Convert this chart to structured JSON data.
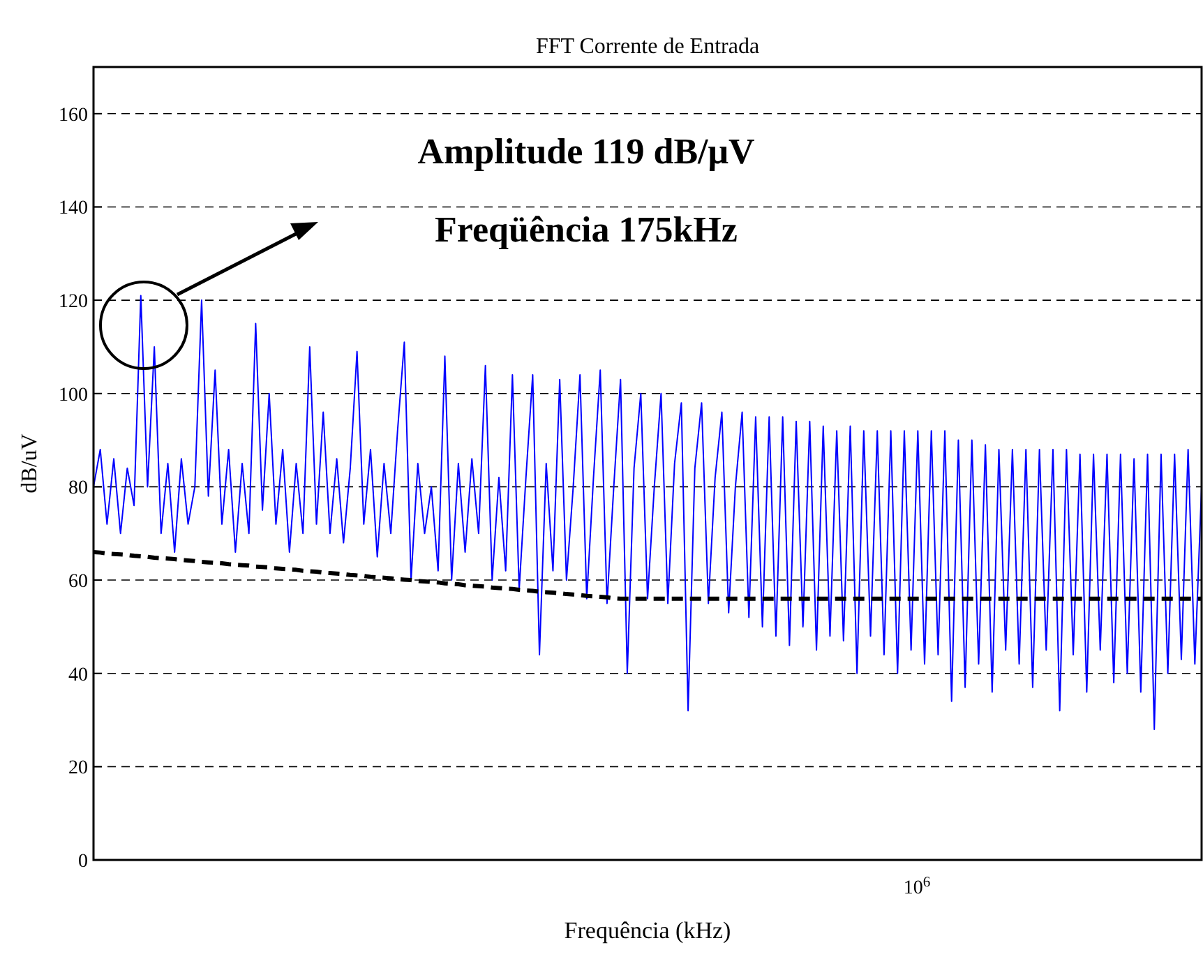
{
  "chart_data": {
    "type": "line",
    "title": "FFT Corrente de Entrada",
    "xlabel": "Frequência (kHz)",
    "ylabel": "dB/uV",
    "annotations": [
      "Amplitude 119 dB/μV",
      "Freqüência 175kHz",
      "10$^{6}$"
    ],
    "grid": "y",
    "ylim": [
      0,
      170
    ],
    "yticks": [
      0,
      20,
      40,
      60,
      80,
      100,
      120,
      140,
      160
    ],
    "categories": [
      null,
      null,
      null,
      null,
      null,
      null,
      null,
      null,
      null,
      null,
      null,
      null,
      null,
      null,
      null,
      null,
      null,
      null,
      null,
      null,
      null,
      null,
      null,
      null,
      null,
      null,
      null,
      null,
      null,
      null,
      null,
      null,
      null,
      null,
      null,
      null,
      null,
      null,
      null,
      null,
      null,
      null,
      null,
      null,
      null,
      null,
      null,
      null,
      null,
      null,
      null,
      null,
      null,
      null,
      null,
      null,
      null,
      null,
      null,
      null,
      null,
      null,
      null,
      null,
      null,
      null,
      null,
      null,
      null,
      null,
      null,
      null,
      null,
      null,
      null,
      null,
      null,
      null,
      null,
      null,
      null,
      null,
      null,
      null,
      null,
      null,
      null,
      null,
      null,
      null,
      null,
      null,
      null,
      null,
      null,
      null,
      null,
      null,
      null,
      null,
      null,
      null,
      null,
      null,
      null,
      null,
      null,
      null,
      null,
      null,
      null,
      null,
      null,
      null,
      null,
      null,
      null,
      null,
      null,
      null,
      null,
      null,
      null,
      null,
      null,
      null,
      null,
      null,
      null,
      null,
      null,
      null,
      null,
      null,
      null,
      null,
      null,
      null,
      null,
      null,
      null,
      null,
      null,
      null,
      null,
      null,
      null,
      null,
      null,
      null,
      null,
      null,
      null,
      null,
      null,
      null,
      null,
      null,
      null,
      null,
      null,
      null,
      null,
      null,
      null
    ],
    "series": [
      {
        "color": "#0000ff",
        "line_style": "solid",
        "values": [
          80,
          88,
          72,
          86,
          70,
          84,
          76,
          121,
          80,
          110,
          70,
          85,
          66,
          86,
          72,
          80,
          120,
          78,
          105,
          72,
          88,
          66,
          85,
          70,
          115,
          75,
          100,
          72,
          88,
          66,
          85,
          70,
          110,
          72,
          96,
          70,
          86,
          68,
          84,
          109,
          72,
          88,
          65,
          85,
          70,
          92,
          111,
          60,
          85,
          70,
          80,
          62,
          108,
          60,
          85,
          66,
          86,
          70,
          106,
          60,
          82,
          62,
          104,
          58,
          82,
          104,
          44,
          85,
          62,
          103,
          60,
          80,
          104,
          56,
          82,
          105,
          55,
          80,
          103,
          40,
          84,
          100,
          56,
          80,
          100,
          55,
          85,
          98,
          32,
          84,
          98,
          55,
          82,
          96,
          53,
          80,
          96,
          52,
          95,
          50,
          95,
          48,
          95,
          46,
          94,
          50,
          94,
          45,
          93,
          48,
          92,
          47,
          93,
          40,
          92,
          48,
          92,
          44,
          92,
          40,
          92,
          45,
          92,
          42,
          92,
          44,
          92,
          34,
          90,
          37,
          90,
          42,
          89,
          36,
          88,
          45,
          88,
          42,
          88,
          37,
          88,
          45,
          88,
          32,
          88,
          44,
          87,
          36,
          87,
          45,
          87,
          38,
          87,
          40,
          86,
          36,
          87,
          28,
          87,
          40,
          87,
          43,
          88,
          42,
          80
        ]
      },
      {
        "color": "#000000",
        "line_style": "dashed",
        "values": [
          66.0,
          65.9,
          65.7,
          65.6,
          65.5,
          65.4,
          65.2,
          65.1,
          65.0,
          64.8,
          64.7,
          64.6,
          64.5,
          64.3,
          64.2,
          64.1,
          63.9,
          63.8,
          63.7,
          63.6,
          63.4,
          63.3,
          63.2,
          63.1,
          62.9,
          62.8,
          62.7,
          62.5,
          62.4,
          62.3,
          62.2,
          62.0,
          61.9,
          61.8,
          61.6,
          61.5,
          61.4,
          61.3,
          61.1,
          61.0,
          60.9,
          60.7,
          60.6,
          60.5,
          60.4,
          60.2,
          60.1,
          60.0,
          59.8,
          59.7,
          59.6,
          59.5,
          59.3,
          59.2,
          59.1,
          58.9,
          58.8,
          58.7,
          58.6,
          58.4,
          58.3,
          58.2,
          58.1,
          57.9,
          57.8,
          57.7,
          57.5,
          57.4,
          57.3,
          57.2,
          57.0,
          56.9,
          56.8,
          56.6,
          56.5,
          56.4,
          56.3,
          56.1,
          56.0,
          56,
          56,
          56,
          56,
          56,
          56,
          56,
          56,
          56,
          56,
          56,
          56,
          56,
          56,
          56,
          56,
          56,
          56,
          56,
          56,
          56,
          56,
          56,
          56,
          56,
          56,
          56,
          56,
          56,
          56,
          56,
          56,
          56,
          56,
          56,
          56,
          56,
          56,
          56,
          56,
          56,
          56,
          56,
          56,
          56,
          56,
          56,
          56,
          56,
          56,
          56,
          56,
          56,
          56,
          56,
          56,
          56,
          56,
          56,
          56,
          56,
          56,
          56,
          56,
          56,
          56,
          56,
          56,
          56,
          56,
          56,
          56,
          56,
          56,
          56,
          56,
          56,
          56,
          56,
          56,
          56,
          56,
          56,
          56,
          56,
          56
        ]
      }
    ]
  }
}
